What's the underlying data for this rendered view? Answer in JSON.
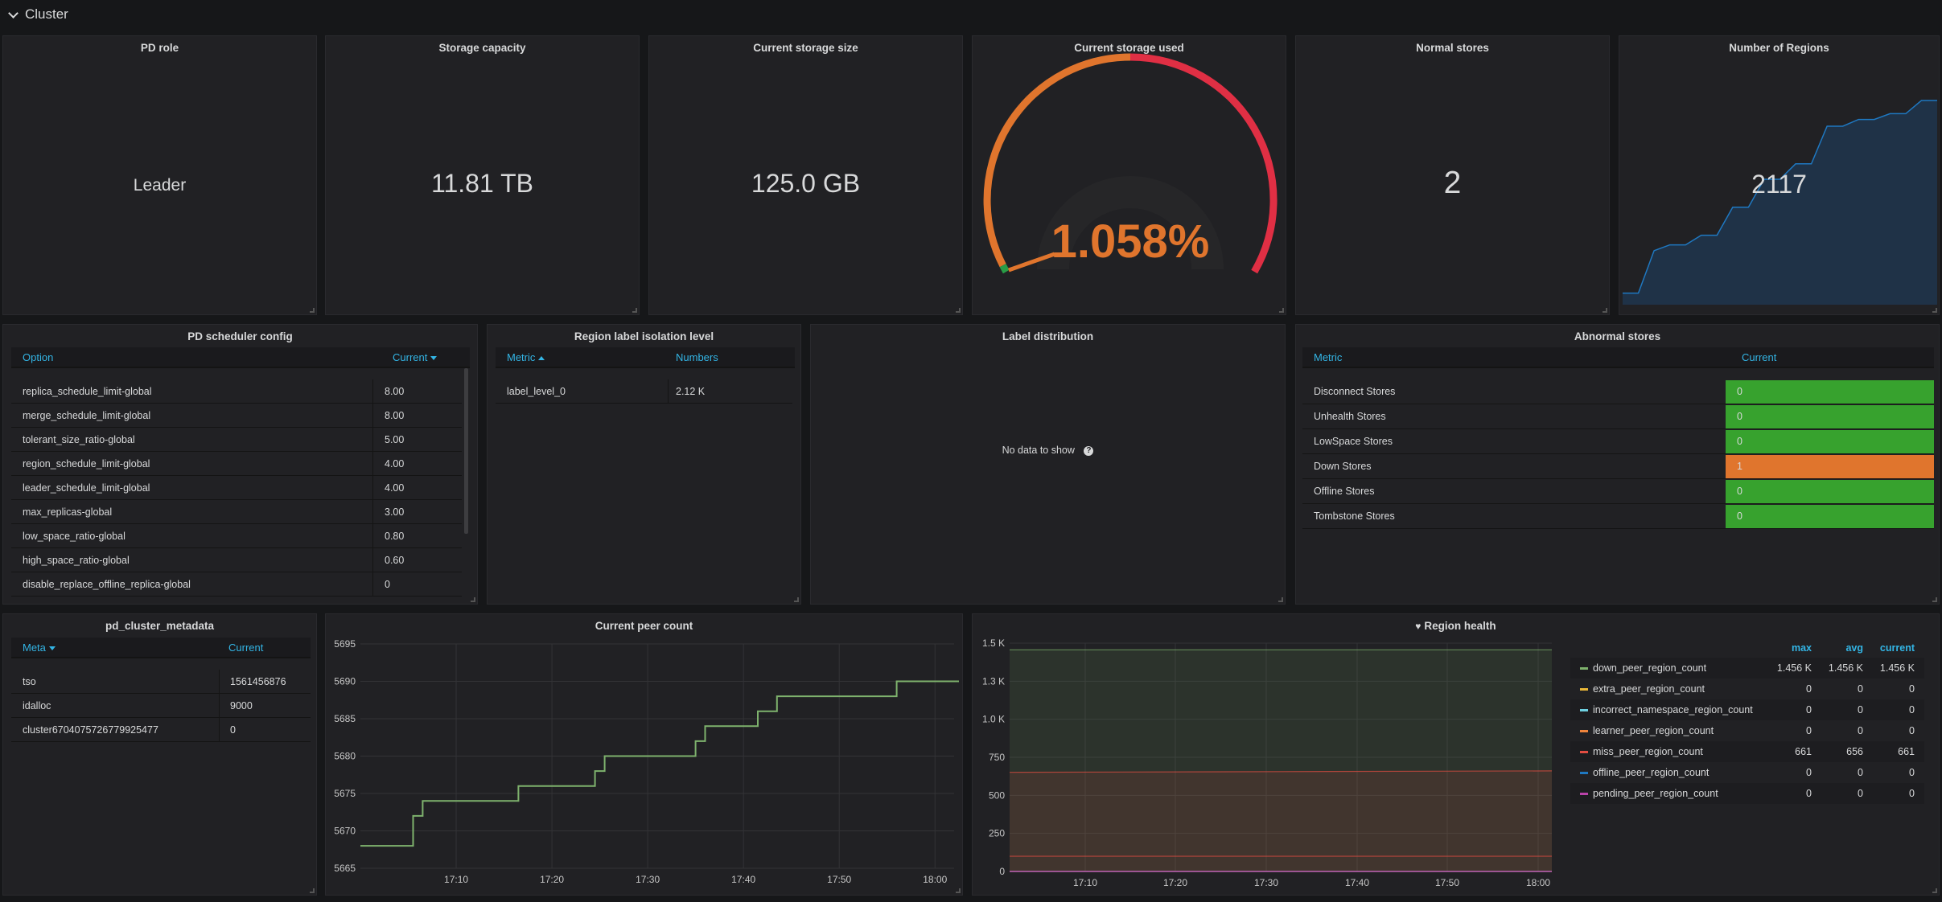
{
  "row": {
    "title": "Cluster"
  },
  "pd_role": {
    "title": "PD role",
    "value": "Leader"
  },
  "storage_capacity": {
    "title": "Storage capacity",
    "value": "11.81 TB"
  },
  "current_storage_size": {
    "title": "Current storage size",
    "value": "125.0 GB"
  },
  "current_storage_used": {
    "title": "Current storage used",
    "value": "1.058%",
    "fraction": 0.01058,
    "colors": {
      "ok": "#299c46",
      "warn": "#e0752d",
      "crit": "#e02f44"
    }
  },
  "normal_stores": {
    "title": "Normal stores",
    "value": "2"
  },
  "number_of_regions": {
    "title": "Number of Regions",
    "value": "2117",
    "spark": [
      120,
      120,
      560,
      620,
      620,
      720,
      720,
      1010,
      1010,
      1300,
      1300,
      1460,
      1460,
      1850,
      1850,
      1920,
      1920,
      1980,
      1980,
      2117,
      2117
    ]
  },
  "pd_scheduler_config": {
    "title": "PD scheduler config",
    "headers": [
      "Option",
      "Current"
    ],
    "rows": [
      [
        "replica_schedule_limit-global",
        "8.00"
      ],
      [
        "merge_schedule_limit-global",
        "8.00"
      ],
      [
        "tolerant_size_ratio-global",
        "5.00"
      ],
      [
        "region_schedule_limit-global",
        "4.00"
      ],
      [
        "leader_schedule_limit-global",
        "4.00"
      ],
      [
        "max_replicas-global",
        "3.00"
      ],
      [
        "low_space_ratio-global",
        "0.80"
      ],
      [
        "high_space_ratio-global",
        "0.60"
      ],
      [
        "disable_replace_offline_replica-global",
        "0"
      ]
    ]
  },
  "region_label_isolation": {
    "title": "Region label isolation level",
    "headers": [
      "Metric",
      "Numbers"
    ],
    "rows": [
      [
        "label_level_0",
        "2.12 K"
      ]
    ]
  },
  "label_distribution": {
    "title": "Label distribution",
    "empty_text": "No data to show",
    "help_icon": "question-circle-icon"
  },
  "abnormal_stores": {
    "title": "Abnormal stores",
    "headers": [
      "Metric",
      "Current"
    ],
    "rows": [
      {
        "label": "Disconnect Stores",
        "value": "0",
        "color": "#37a22e"
      },
      {
        "label": "Unhealth Stores",
        "value": "0",
        "color": "#37a22e"
      },
      {
        "label": "LowSpace Stores",
        "value": "0",
        "color": "#37a22e"
      },
      {
        "label": "Down Stores",
        "value": "1",
        "color": "#e0752d"
      },
      {
        "label": "Offline Stores",
        "value": "0",
        "color": "#37a22e"
      },
      {
        "label": "Tombstone Stores",
        "value": "0",
        "color": "#37a22e"
      }
    ]
  },
  "pd_cluster_metadata": {
    "title": "pd_cluster_metadata",
    "headers": [
      "Meta",
      "Current"
    ],
    "rows": [
      [
        "tso",
        "1561456876"
      ],
      [
        "idalloc",
        "9000"
      ],
      [
        "cluster6704075726779925477",
        "0"
      ]
    ]
  },
  "chart_data": [
    {
      "type": "line",
      "title": "Current peer count",
      "x_ticks": [
        "17:10",
        "17:20",
        "17:30",
        "17:40",
        "17:50",
        "18:00"
      ],
      "y_ticks": [
        "5665",
        "5670",
        "5675",
        "5680",
        "5685",
        "5690",
        "5695"
      ],
      "ylim": [
        5665,
        5695
      ],
      "xlim_minutes": [
        0,
        60
      ],
      "x_tick_minutes": [
        10,
        20,
        30,
        40,
        50,
        60
      ],
      "color": "#7eb26d",
      "series": [
        {
          "x": [
            0,
            5.5,
            5.5,
            6.5,
            6.5,
            16.5,
            16.5,
            24.5,
            24.5,
            25.5,
            25.5,
            35,
            35,
            36,
            36,
            41.5,
            41.5,
            43.5,
            43.5,
            56,
            56,
            62.5
          ],
          "y": [
            5668,
            5668,
            5672,
            5672,
            5674,
            5674,
            5676,
            5676,
            5678,
            5678,
            5680,
            5680,
            5682,
            5682,
            5684,
            5684,
            5686,
            5686,
            5688,
            5688,
            5690,
            5690
          ]
        }
      ]
    },
    {
      "type": "area",
      "title": "Region health",
      "title_icon": "heart-icon",
      "x_ticks": [
        "17:10",
        "17:20",
        "17:30",
        "17:40",
        "17:50",
        "18:00"
      ],
      "y_ticks": [
        "0",
        "250",
        "500",
        "750",
        "1.0 K",
        "1.3 K",
        "1.5 K"
      ],
      "ylim": [
        0,
        1500
      ],
      "legend_headers": [
        "max",
        "avg",
        "current"
      ],
      "series": [
        {
          "name": "down_peer_region_count",
          "color": "#7eb26d",
          "values": [
            1456,
            1456,
            1456
          ],
          "max": "1.456 K",
          "avg": "1.456 K",
          "current": "1.456 K"
        },
        {
          "name": "extra_peer_region_count",
          "color": "#eab839",
          "values": [
            0,
            0,
            0
          ],
          "max": "0",
          "avg": "0",
          "current": "0"
        },
        {
          "name": "incorrect_namespace_region_count",
          "color": "#6ed0e0",
          "values": [
            0,
            0,
            0
          ],
          "max": "0",
          "avg": "0",
          "current": "0"
        },
        {
          "name": "learner_peer_region_count",
          "color": "#ef843c",
          "values": [
            0,
            0,
            0
          ],
          "max": "0",
          "avg": "0",
          "current": "0"
        },
        {
          "name": "miss_peer_region_count",
          "color": "#e24d42",
          "values": [
            651,
            656,
            661
          ],
          "max": "661",
          "avg": "656",
          "current": "661"
        },
        {
          "name": "offline_peer_region_count",
          "color": "#1f78c1",
          "values": [
            0,
            0,
            0
          ],
          "max": "0",
          "avg": "0",
          "current": "0"
        },
        {
          "name": "pending_peer_region_count",
          "color": "#ba43a9",
          "values": [
            0,
            0,
            0
          ],
          "max": "0",
          "avg": "0",
          "current": "0"
        }
      ],
      "extra_line_value": 100
    }
  ]
}
